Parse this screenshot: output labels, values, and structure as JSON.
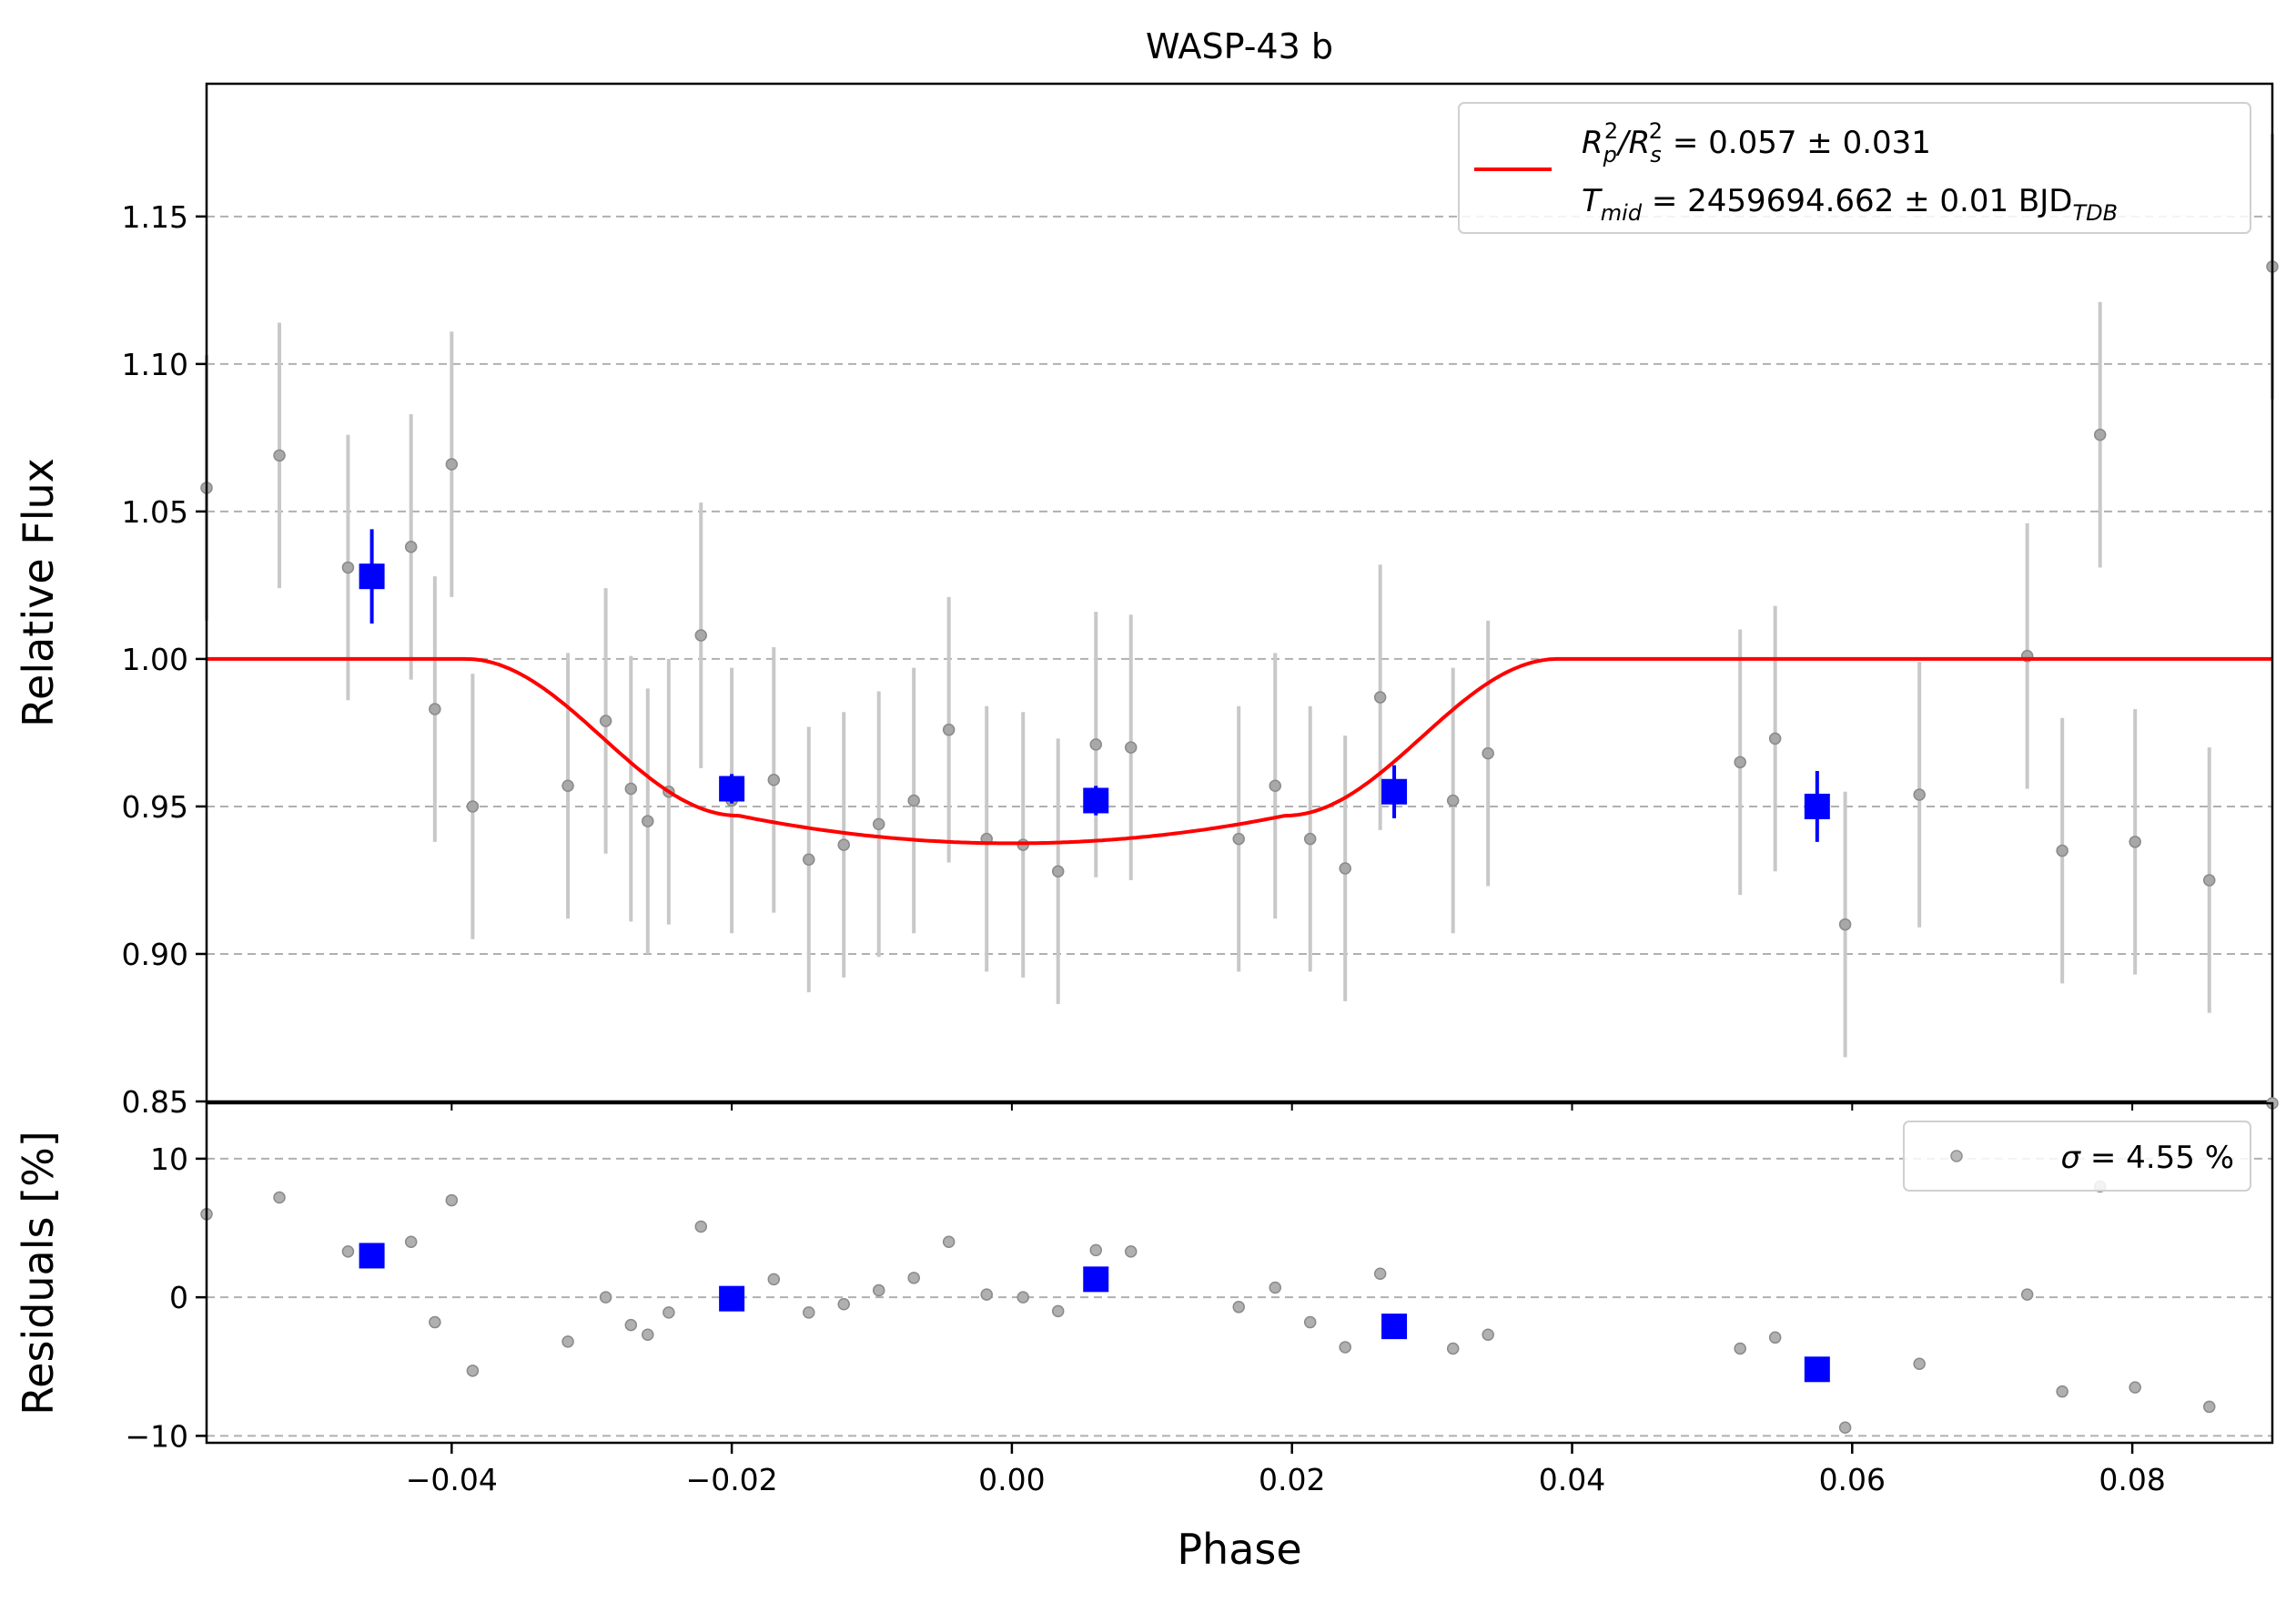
{
  "chart_data": [
    {
      "panel": "main",
      "type": "scatter",
      "title": "WASP-43 b",
      "xlabel": "",
      "ylabel": "Relative Flux",
      "xlim": [
        -0.0575,
        0.09
      ],
      "ylim": [
        0.85,
        1.195
      ],
      "x_ticks": [
        -0.04,
        -0.02,
        0.0,
        0.02,
        0.04,
        0.06,
        0.08
      ],
      "y_ticks": [
        0.85,
        0.9,
        0.95,
        1.0,
        1.05,
        1.1,
        1.15
      ],
      "y_tick_labels": [
        "0.85",
        "0.90",
        "0.95",
        "1.00",
        "1.05",
        "1.10",
        "1.15"
      ],
      "grid": "y-dashed",
      "legend": {
        "placement": "top-right",
        "line1_base": "R",
        "line1_sub1": "p",
        "line1_sup1": "2",
        "line1_slash": "/R",
        "line1_sub2": "s",
        "line1_sup2": "2",
        "line1_value": " = 0.057 ± 0.031",
        "line2_base": "T",
        "line2_sub": "mid",
        "line2_value": " = 2459694.662 ± 0.01 BJD",
        "line2_unit_sub": "TDB"
      },
      "colors": {
        "data": "#808080",
        "errorbar": "#c8c8c8",
        "binned": "#0000ff",
        "model": "#ff0000"
      },
      "series": [
        {
          "kind": "unbinned",
          "points": [
            [
              -0.0575,
              1.058,
              0.045
            ],
            [
              -0.0523,
              1.069,
              0.045
            ],
            [
              -0.0474,
              1.031,
              0.045
            ],
            [
              -0.0429,
              1.038,
              0.045
            ],
            [
              -0.0412,
              0.983,
              0.045
            ],
            [
              -0.04,
              1.066,
              0.045
            ],
            [
              -0.0385,
              0.95,
              0.045
            ],
            [
              -0.0317,
              0.957,
              0.045
            ],
            [
              -0.029,
              0.979,
              0.045
            ],
            [
              -0.0272,
              0.956,
              0.045
            ],
            [
              -0.026,
              0.945,
              0.045
            ],
            [
              -0.0245,
              0.955,
              0.045
            ],
            [
              -0.0222,
              1.008,
              0.045
            ],
            [
              -0.02,
              0.952,
              0.045
            ],
            [
              -0.017,
              0.959,
              0.045
            ],
            [
              -0.0145,
              0.932,
              0.045
            ],
            [
              -0.012,
              0.937,
              0.045
            ],
            [
              -0.0095,
              0.944,
              0.045
            ],
            [
              -0.007,
              0.952,
              0.045
            ],
            [
              -0.0045,
              0.976,
              0.045
            ],
            [
              -0.0018,
              0.939,
              0.045
            ],
            [
              0.0008,
              0.937,
              0.045
            ],
            [
              0.0033,
              0.928,
              0.045
            ],
            [
              0.006,
              0.971,
              0.045
            ],
            [
              0.0085,
              0.97,
              0.045
            ],
            [
              0.0162,
              0.939,
              0.045
            ],
            [
              0.0188,
              0.957,
              0.045
            ],
            [
              0.0213,
              0.939,
              0.045
            ],
            [
              0.0238,
              0.929,
              0.045
            ],
            [
              0.0263,
              0.987,
              0.045
            ],
            [
              0.0315,
              0.952,
              0.045
            ],
            [
              0.034,
              0.968,
              0.045
            ],
            [
              0.052,
              0.965,
              0.045
            ],
            [
              0.0545,
              0.973,
              0.045
            ],
            [
              0.0595,
              0.91,
              0.045
            ],
            [
              0.0648,
              0.954,
              0.045
            ],
            [
              0.0725,
              1.001,
              0.045
            ],
            [
              0.075,
              0.935,
              0.045
            ],
            [
              0.0777,
              1.076,
              0.045
            ],
            [
              0.0802,
              0.938,
              0.045
            ],
            [
              0.0855,
              0.925,
              0.045
            ],
            [
              0.09,
              1.133,
              0.045
            ]
          ]
        },
        {
          "kind": "binned",
          "points": [
            [
              -0.0457,
              1.028,
              0.016
            ],
            [
              -0.02,
              0.956,
              0.005
            ],
            [
              0.006,
              0.952,
              0.005
            ],
            [
              0.0273,
              0.955,
              0.009
            ],
            [
              0.0575,
              0.95,
              0.012
            ]
          ]
        },
        {
          "kind": "transit-model",
          "name": "",
          "depth": 0.0625,
          "t_contact": 0.039,
          "t_flat": 0.0195
        }
      ]
    },
    {
      "panel": "residuals",
      "type": "scatter",
      "xlabel": "Phase",
      "ylabel": "Residuals [%]",
      "xlim": [
        -0.0575,
        0.09
      ],
      "ylim": [
        -10.5,
        14.0
      ],
      "x_ticks": [
        -0.04,
        -0.02,
        0.0,
        0.02,
        0.04,
        0.06,
        0.08
      ],
      "x_tick_labels": [
        "−0.04",
        "−0.02",
        "0.00",
        "0.02",
        "0.04",
        "0.06",
        "0.08"
      ],
      "y_ticks": [
        -10,
        0,
        10
      ],
      "y_tick_labels": [
        "−10",
        "0",
        "10"
      ],
      "grid": "y-dashed",
      "legend": {
        "placement": "top-right",
        "sigma_symbol": "σ",
        "text": " = 4.55 %"
      },
      "series": [
        {
          "kind": "unbinned",
          "points": [
            [
              -0.0575,
              6.0
            ],
            [
              -0.0523,
              7.2
            ],
            [
              -0.0474,
              3.3
            ],
            [
              -0.0429,
              4.0
            ],
            [
              -0.0412,
              -1.8
            ],
            [
              -0.04,
              7.0
            ],
            [
              -0.0385,
              -5.3
            ],
            [
              -0.0317,
              -3.2
            ],
            [
              -0.029,
              0.0
            ],
            [
              -0.0272,
              -2.0
            ],
            [
              -0.026,
              -2.7
            ],
            [
              -0.0245,
              -1.1
            ],
            [
              -0.0222,
              5.1
            ],
            [
              -0.017,
              1.3
            ],
            [
              -0.0145,
              -1.1
            ],
            [
              -0.012,
              -0.5
            ],
            [
              -0.0095,
              0.5
            ],
            [
              -0.007,
              1.4
            ],
            [
              -0.0045,
              4.0
            ],
            [
              -0.0018,
              0.2
            ],
            [
              0.0008,
              0.0
            ],
            [
              0.0033,
              -1.0
            ],
            [
              0.006,
              3.4
            ],
            [
              0.0085,
              3.3
            ],
            [
              0.0162,
              -0.7
            ],
            [
              0.0188,
              0.7
            ],
            [
              0.0213,
              -1.8
            ],
            [
              0.0238,
              -3.6
            ],
            [
              0.0263,
              1.7
            ],
            [
              0.0315,
              -3.7
            ],
            [
              0.034,
              -2.7
            ],
            [
              0.052,
              -3.7
            ],
            [
              0.0545,
              -2.9
            ],
            [
              0.0595,
              -9.4
            ],
            [
              0.0648,
              -4.8
            ],
            [
              0.0725,
              0.2
            ],
            [
              0.075,
              -6.8
            ],
            [
              0.0777,
              8.0
            ],
            [
              0.0802,
              -6.5
            ],
            [
              0.0855,
              -7.9
            ],
            [
              0.09,
              14.0
            ]
          ]
        },
        {
          "kind": "binned",
          "points": [
            [
              -0.0457,
              3.0
            ],
            [
              -0.02,
              -0.1
            ],
            [
              0.006,
              1.3
            ],
            [
              0.0273,
              -2.1
            ],
            [
              0.0575,
              -5.2
            ]
          ]
        }
      ]
    }
  ]
}
